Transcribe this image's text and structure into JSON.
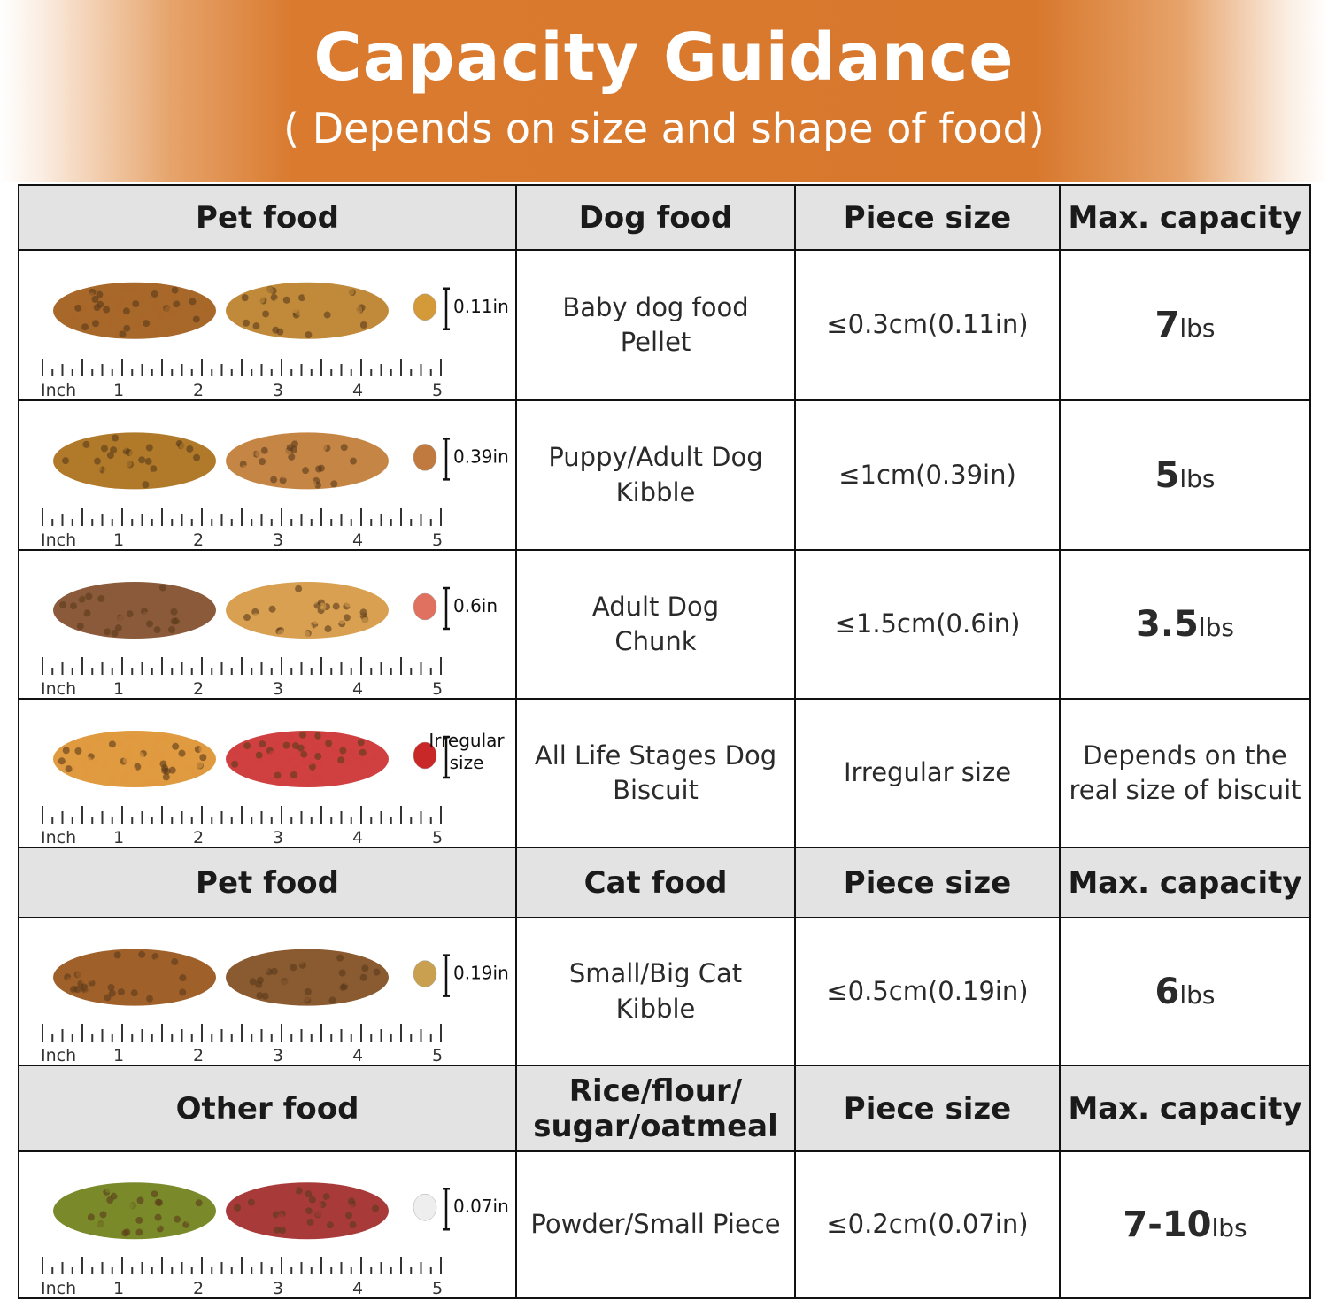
{
  "banner": {
    "title": "Capacity Guidance",
    "subtitle": "( Depends on size and shape of food)",
    "color": "#d8782d"
  },
  "ruler_labels": [
    "Inch",
    "1",
    "2",
    "3",
    "4",
    "5"
  ],
  "sections": [
    {
      "headers": [
        "Pet food",
        "Dog food",
        "Piece size",
        "Max. capacity"
      ],
      "rows": [
        {
          "size_label": [
            "0.11in"
          ],
          "food": [
            "Baby dog food",
            "Pellet"
          ],
          "piece_size": "≤0.3cm(0.11in)",
          "capacity_value": "7",
          "capacity_unit": "lbs",
          "pile_colors": [
            "#a8682a",
            "#c08a3a"
          ],
          "piece_color": "#d49a3a"
        },
        {
          "size_label": [
            "0.39in"
          ],
          "food": [
            "Puppy/Adult Dog",
            "Kibble"
          ],
          "piece_size": "≤1cm(0.39in)",
          "capacity_value": "5",
          "capacity_unit": "lbs",
          "pile_colors": [
            "#b07a2a",
            "#c58645"
          ],
          "piece_color": "#c07a40"
        },
        {
          "size_label": [
            "0.6in"
          ],
          "food": [
            "Adult Dog",
            "Chunk"
          ],
          "piece_size": "≤1.5cm(0.6in)",
          "capacity_value": "3.5",
          "capacity_unit": "lbs",
          "pile_colors": [
            "#8a5a3a",
            "#d8a050"
          ],
          "piece_color": "#e07060"
        },
        {
          "size_label": [
            "Irregular",
            "size"
          ],
          "food": [
            "All Life Stages Dog",
            "Biscuit"
          ],
          "piece_size": "Irregular size",
          "capacity_value": "",
          "capacity_unit": "",
          "capacity_text": [
            "Depends on the",
            "real size of biscuit"
          ],
          "pile_colors": [
            "#e09a40",
            "#d04040"
          ],
          "piece_color": "#c82828"
        }
      ]
    },
    {
      "headers": [
        "Pet food",
        "Cat food",
        "Piece size",
        "Max. capacity"
      ],
      "rows": [
        {
          "size_label": [
            "0.19in"
          ],
          "food": [
            "Small/Big Cat",
            "Kibble"
          ],
          "piece_size": "≤0.5cm(0.19in)",
          "capacity_value": "6",
          "capacity_unit": "lbs",
          "pile_colors": [
            "#a0602a",
            "#8a5a30"
          ],
          "piece_color": "#c8a050"
        }
      ]
    },
    {
      "headers": [
        "Other food",
        "Rice/flour/ sugar/oatmeal",
        "Piece size",
        "Max. capacity"
      ],
      "rows": [
        {
          "size_label": [
            "0.07in"
          ],
          "food": [
            "Powder/Small Piece"
          ],
          "piece_size": "≤0.2cm(0.07in)",
          "capacity_value": "7-10",
          "capacity_unit": "lbs",
          "pile_colors": [
            "#7a8a2a",
            "#a83a3a"
          ],
          "piece_color": "#eeeeee"
        }
      ]
    }
  ]
}
